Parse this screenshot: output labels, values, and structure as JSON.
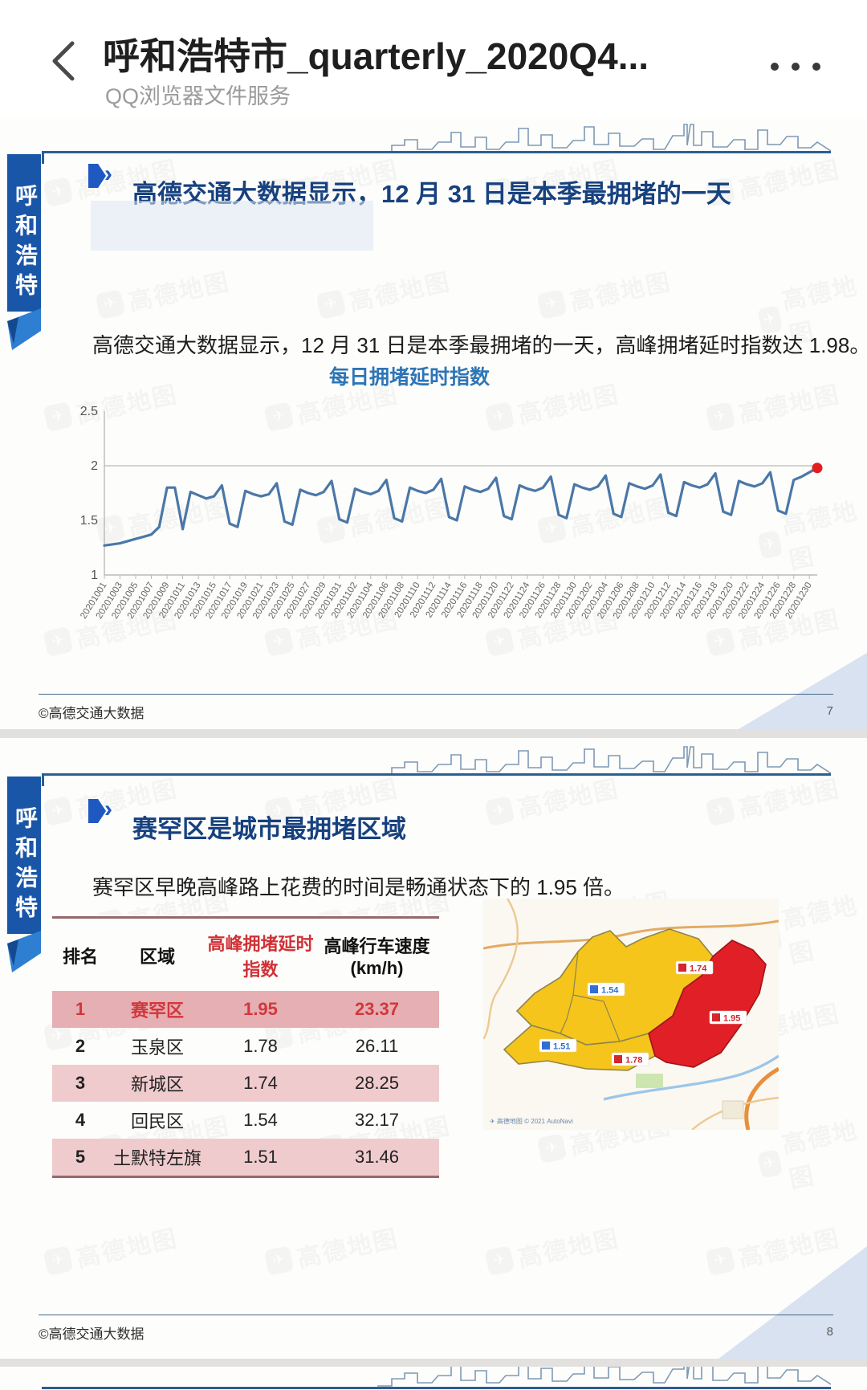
{
  "app_header": {
    "title": "呼和浩特市_quarterly_2020Q4...",
    "subtitle": "QQ浏览器文件服务",
    "back_icon": "chevron-left-icon",
    "menu_icon": "ellipsis-icon"
  },
  "watermark": {
    "text": "高德地图",
    "logo": "paper-plane-icon"
  },
  "pages": [
    {
      "side_tab": "呼和浩特市",
      "title": "高德交通大数据显示，12 月 31 日是本季最拥堵的一天",
      "body": "高德交通大数据显示，12 月 31 日是本季最拥堵的一天，高峰拥堵延时指数达 1.98。",
      "footer_left": "©高德交通大数据",
      "page_number": "7"
    },
    {
      "side_tab": "呼和浩特市",
      "title": "赛罕区是城市最拥堵区域",
      "body": "赛罕区早晚高峰路上花费的时间是畅通状态下的 1.95 倍。",
      "footer_left": "©高德交通大数据",
      "page_number": "8",
      "table": {
        "headers": [
          "排名",
          "区域",
          "高峰拥堵延时指数",
          "高峰行车速度(km/h)"
        ],
        "highlight_header_index": 2,
        "rows": [
          {
            "rank": "1",
            "district": "赛罕区",
            "index": "1.95",
            "speed": "23.37"
          },
          {
            "rank": "2",
            "district": "玉泉区",
            "index": "1.78",
            "speed": "26.11"
          },
          {
            "rank": "3",
            "district": "新城区",
            "index": "1.74",
            "speed": "28.25"
          },
          {
            "rank": "4",
            "district": "回民区",
            "index": "1.54",
            "speed": "32.17"
          },
          {
            "rank": "5",
            "district": "土默特左旗",
            "index": "1.51",
            "speed": "31.46"
          }
        ]
      },
      "map": {
        "attribution": "高德地图 © 2021 AutoNavi",
        "markers": [
          {
            "value": "1.74",
            "color": "#d2272b",
            "x": 240,
            "y": 78
          },
          {
            "value": "1.54",
            "color": "#2f6fd6",
            "x": 130,
            "y": 105
          },
          {
            "value": "1.95",
            "color": "#d2272b",
            "x": 282,
            "y": 140
          },
          {
            "value": "1.51",
            "color": "#2f6fd6",
            "x": 70,
            "y": 175
          },
          {
            "value": "1.78",
            "color": "#d2272b",
            "x": 160,
            "y": 192
          }
        ],
        "region_colors": {
          "congested": "#e01f26",
          "slow": "#f5c51c"
        }
      }
    }
  ],
  "chart_data": {
    "type": "line",
    "title": "每日拥堵延时指数",
    "ylim": [
      1,
      2.5
    ],
    "y_ticks": [
      "2.5",
      "2",
      "1.5",
      "1"
    ],
    "grid_reference_y": 2,
    "line_color": "#4a77a8",
    "endpoint_color": "#e21f1f",
    "x_tick_labels": [
      "20201001",
      "20201003",
      "20201005",
      "20201007",
      "20201009",
      "20201011",
      "20201013",
      "20201015",
      "20201017",
      "20201019",
      "20201021",
      "20201023",
      "20201025",
      "20201027",
      "20201029",
      "20201031",
      "20201102",
      "20201104",
      "20201106",
      "20201108",
      "20201110",
      "20201112",
      "20201114",
      "20201116",
      "20201118",
      "20201120",
      "20201122",
      "20201124",
      "20201126",
      "20201128",
      "20201130",
      "20201202",
      "20201204",
      "20201206",
      "20201208",
      "20201210",
      "20201212",
      "20201214",
      "20201216",
      "20201218",
      "20201220",
      "20201222",
      "20201224",
      "20201226",
      "20201228",
      "20201230"
    ],
    "values": [
      1.27,
      1.28,
      1.29,
      1.31,
      1.33,
      1.35,
      1.37,
      1.44,
      1.8,
      1.8,
      1.42,
      1.76,
      1.73,
      1.7,
      1.72,
      1.82,
      1.47,
      1.44,
      1.77,
      1.74,
      1.72,
      1.74,
      1.84,
      1.49,
      1.46,
      1.78,
      1.75,
      1.73,
      1.76,
      1.86,
      1.51,
      1.48,
      1.79,
      1.76,
      1.74,
      1.77,
      1.87,
      1.52,
      1.49,
      1.8,
      1.77,
      1.75,
      1.78,
      1.88,
      1.53,
      1.5,
      1.81,
      1.78,
      1.76,
      1.79,
      1.89,
      1.54,
      1.51,
      1.82,
      1.79,
      1.77,
      1.8,
      1.9,
      1.55,
      1.52,
      1.83,
      1.8,
      1.78,
      1.81,
      1.91,
      1.56,
      1.53,
      1.84,
      1.81,
      1.79,
      1.82,
      1.92,
      1.57,
      1.54,
      1.85,
      1.82,
      1.8,
      1.83,
      1.93,
      1.58,
      1.55,
      1.86,
      1.83,
      1.81,
      1.84,
      1.94,
      1.59,
      1.56,
      1.87,
      1.9,
      1.94,
      1.98
    ],
    "last_value_label": "1.98"
  }
}
